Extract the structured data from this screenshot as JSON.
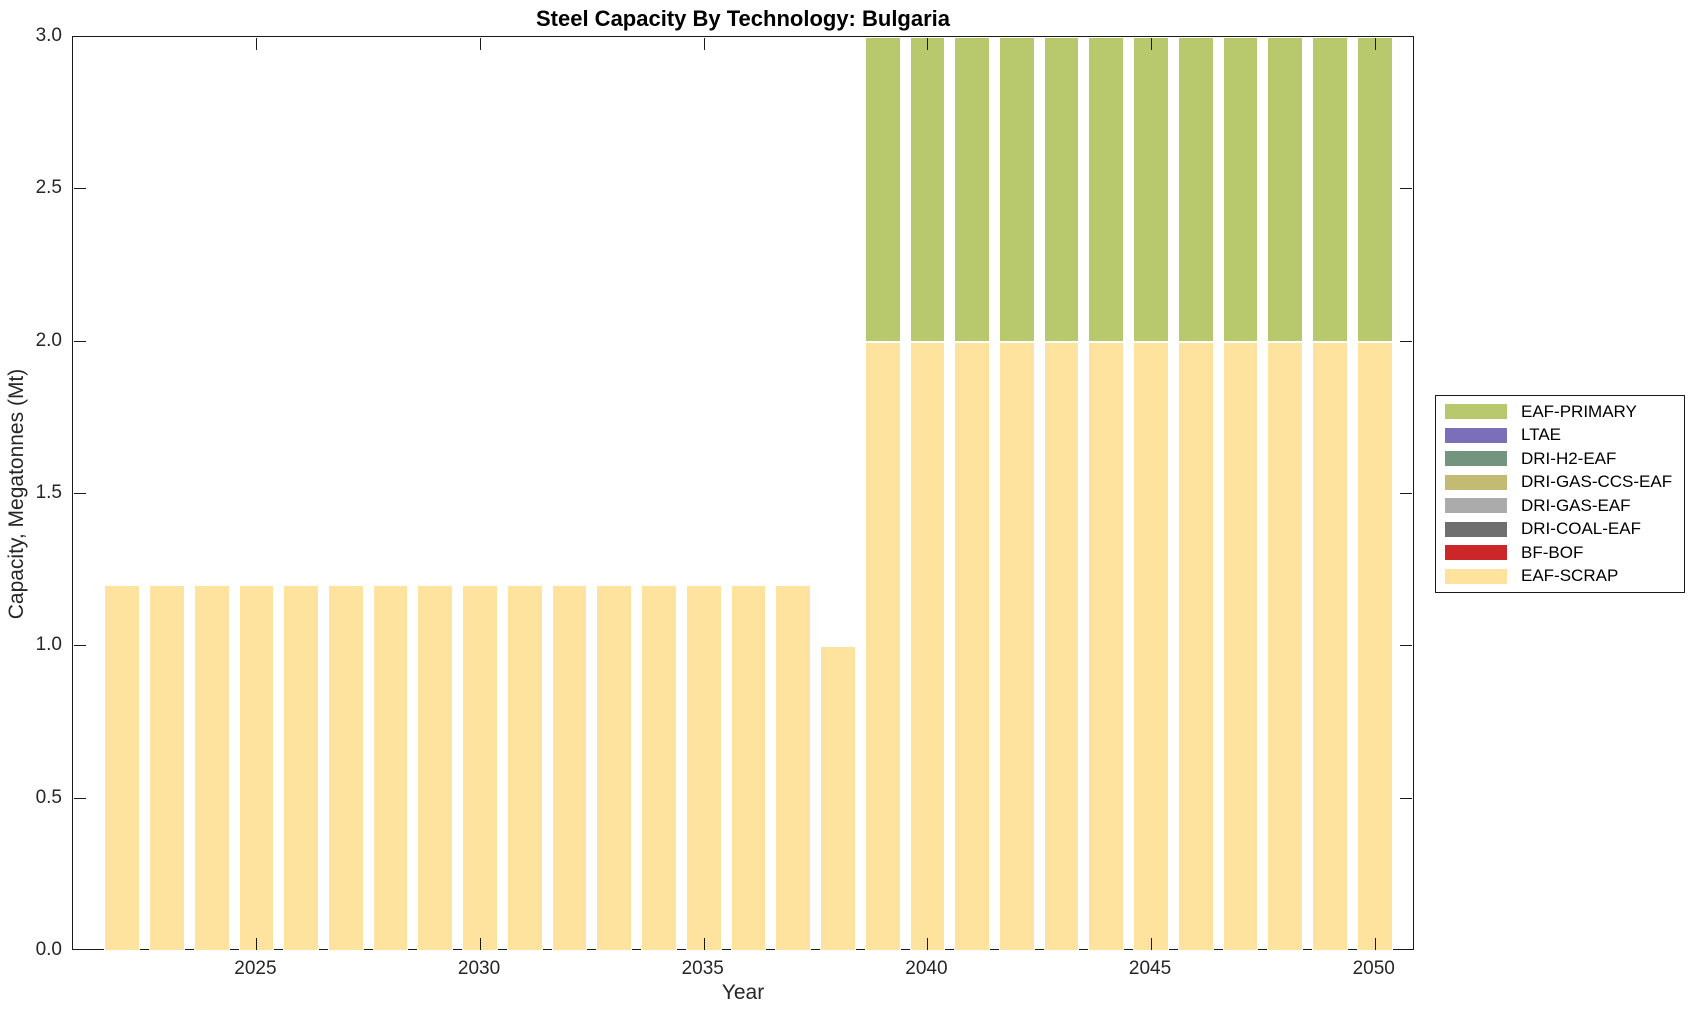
{
  "figure": {
    "title": "Steel Capacity By Technology: Bulgaria"
  },
  "chart_data": {
    "type": "bar",
    "stacked": true,
    "title": "Steel Capacity By Technology: Bulgaria",
    "xlabel": "Year",
    "ylabel": "Capacity, Megatonnes (Mt)",
    "xlim": [
      2020.9,
      2050.9
    ],
    "ylim": [
      0,
      3
    ],
    "grid": false,
    "legend_position": "right-outside",
    "bar_width_years": 0.8,
    "x_ticks": [
      {
        "value": 2025,
        "label": "2025"
      },
      {
        "value": 2030,
        "label": "2030"
      },
      {
        "value": 2035,
        "label": "2035"
      },
      {
        "value": 2040,
        "label": "2040"
      },
      {
        "value": 2045,
        "label": "2045"
      },
      {
        "value": 2050,
        "label": "2050"
      }
    ],
    "y_ticks": [
      {
        "value": 0.0,
        "label": "0.0"
      },
      {
        "value": 0.5,
        "label": "0.5"
      },
      {
        "value": 1.0,
        "label": "1.0"
      },
      {
        "value": 1.5,
        "label": "1.5"
      },
      {
        "value": 2.0,
        "label": "2.0"
      },
      {
        "value": 2.5,
        "label": "2.5"
      },
      {
        "value": 3.0,
        "label": "3.0"
      }
    ],
    "categories": [
      2022,
      2023,
      2024,
      2025,
      2026,
      2027,
      2028,
      2029,
      2030,
      2031,
      2032,
      2033,
      2034,
      2035,
      2036,
      2037,
      2038,
      2039,
      2040,
      2041,
      2042,
      2043,
      2044,
      2045,
      2046,
      2047,
      2048,
      2049,
      2050
    ],
    "series": [
      {
        "name": "EAF-SCRAP",
        "color": "#fde39e",
        "values": [
          1.2,
          1.2,
          1.2,
          1.2,
          1.2,
          1.2,
          1.2,
          1.2,
          1.2,
          1.2,
          1.2,
          1.2,
          1.2,
          1.2,
          1.2,
          1.2,
          1.0,
          2.0,
          2.0,
          2.0,
          2.0,
          2.0,
          2.0,
          2.0,
          2.0,
          2.0,
          2.0,
          2.0,
          2.0
        ]
      },
      {
        "name": "EAF-PRIMARY",
        "color": "#b8c96d",
        "values": [
          0,
          0,
          0,
          0,
          0,
          0,
          0,
          0,
          0,
          0,
          0,
          0,
          0,
          0,
          0,
          0,
          0,
          1.0,
          1.0,
          1.0,
          1.0,
          1.0,
          1.0,
          1.0,
          1.0,
          1.0,
          1.0,
          1.0,
          1.0
        ]
      }
    ],
    "legend": [
      {
        "label": "EAF-PRIMARY",
        "color": "#b8c96d"
      },
      {
        "label": "LTAE",
        "color": "#7b6fb9"
      },
      {
        "label": "DRI-H2-EAF",
        "color": "#739580"
      },
      {
        "label": "DRI-GAS-CCS-EAF",
        "color": "#c3ba73"
      },
      {
        "label": "DRI-GAS-EAF",
        "color": "#ababab"
      },
      {
        "label": "DRI-COAL-EAF",
        "color": "#6f6f6f"
      },
      {
        "label": "BF-BOF",
        "color": "#cb2628"
      },
      {
        "label": "EAF-SCRAP",
        "color": "#fde39e"
      }
    ]
  }
}
